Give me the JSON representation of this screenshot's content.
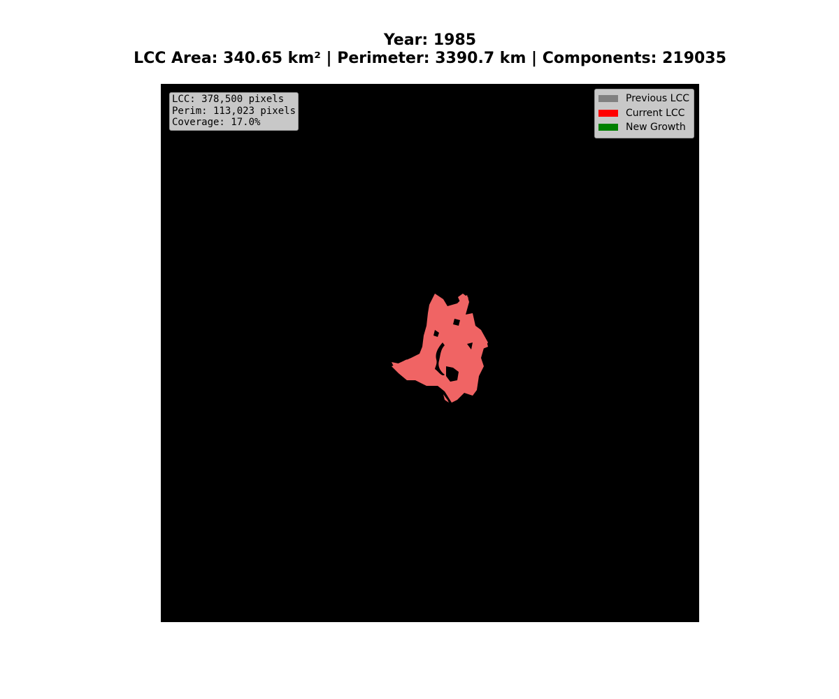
{
  "title": {
    "line1": "Year: 1985",
    "line2": "LCC Area: 340.65 km²  |  Perimeter: 3390.7 km  |  Components: 219035"
  },
  "stats": {
    "lcc": "LCC: 378,500 pixels",
    "perim": "Perim: 113,023 pixels",
    "coverage": "Coverage: 17.0%"
  },
  "legend": {
    "placement": "top-right",
    "items": [
      {
        "label": "Previous LCC",
        "color": "#808080"
      },
      {
        "label": "Current LCC",
        "color": "#ff0000"
      },
      {
        "label": "New Growth",
        "color": "#008000"
      }
    ]
  },
  "colors": {
    "background": "#000000",
    "lcc_fill": "#f06464"
  }
}
